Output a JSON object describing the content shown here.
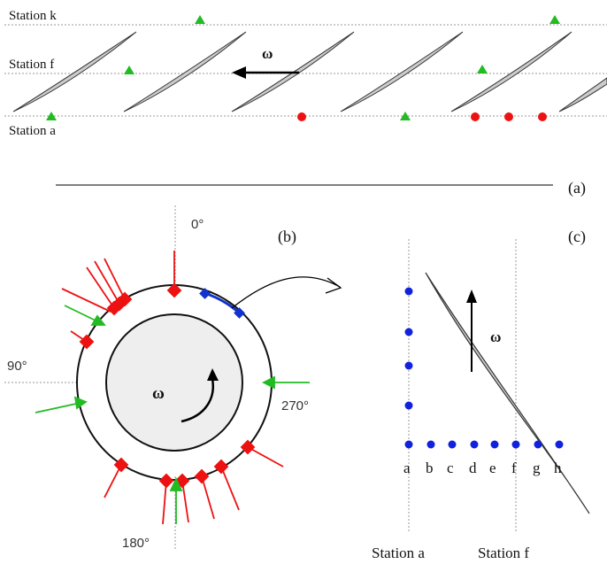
{
  "panel_a": {
    "panel_label": "(a)",
    "stations": [
      {
        "id": "k",
        "label": "Station k"
      },
      {
        "id": "f",
        "label": "Station f"
      },
      {
        "id": "a",
        "label": "Station a"
      }
    ],
    "omega_label": "ω",
    "marker_colors": {
      "green": "#22bb22",
      "red": "#ee1111"
    }
  },
  "panel_b": {
    "panel_label": "(b)",
    "angles": [
      {
        "id": "0",
        "label": "0°"
      },
      {
        "id": "90",
        "label": "90°"
      },
      {
        "id": "180",
        "label": "180°"
      },
      {
        "id": "270",
        "label": "270°"
      }
    ],
    "omega_label": "ω",
    "colors": {
      "red": "#ee1111",
      "green": "#22bb22",
      "blue": "#1133cc"
    }
  },
  "panel_c": {
    "panel_label": "(c)",
    "omega_label": "ω",
    "probe_letters": [
      "a",
      "b",
      "c",
      "d",
      "e",
      "f",
      "g",
      "h"
    ],
    "station_labels": [
      "Station a",
      "Station f"
    ],
    "probe_color": "#1122dd"
  }
}
